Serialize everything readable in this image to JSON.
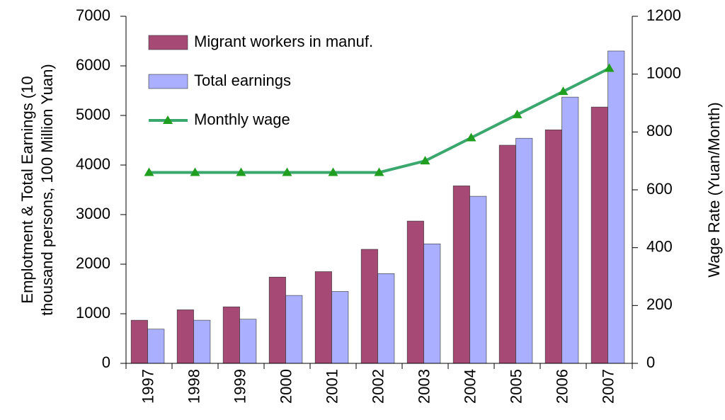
{
  "chart_data": {
    "type": "bar",
    "ylabel": [
      "Emplotment & Total Earnings (10",
      "thousand persons, 100 Million Yuan)"
    ],
    "y2label": "Wage Rate (Yuan/Month)",
    "categories": [
      "1997",
      "1998",
      "1999",
      "2000",
      "2001",
      "2002",
      "2003",
      "2004",
      "2005",
      "2006",
      "2007"
    ],
    "series": [
      {
        "name": "Migrant workers in manuf.",
        "type": "bar",
        "color": "#a64975",
        "values": [
          870,
          1080,
          1140,
          1740,
          1850,
          2300,
          2870,
          3580,
          4400,
          4710,
          5170
        ]
      },
      {
        "name": "Total earnings",
        "type": "bar",
        "color": "#aab0ff",
        "values": [
          690,
          870,
          890,
          1370,
          1450,
          1810,
          2410,
          3370,
          4540,
          5370,
          6300
        ]
      },
      {
        "name": "Monthly wage",
        "type": "line",
        "axis": "y2",
        "color": "#3aa76d",
        "marker_color": "#1f9e1f",
        "values": [
          660,
          660,
          660,
          660,
          660,
          660,
          700,
          780,
          860,
          940,
          1020
        ]
      }
    ],
    "ylim": [
      0,
      7000
    ],
    "yticks": [
      0,
      1000,
      2000,
      3000,
      4000,
      5000,
      6000,
      7000
    ],
    "y2lim": [
      0,
      1200
    ],
    "y2ticks": [
      0,
      200,
      400,
      600,
      800,
      1000,
      1200
    ],
    "grid": false,
    "legend": "upper-left"
  }
}
